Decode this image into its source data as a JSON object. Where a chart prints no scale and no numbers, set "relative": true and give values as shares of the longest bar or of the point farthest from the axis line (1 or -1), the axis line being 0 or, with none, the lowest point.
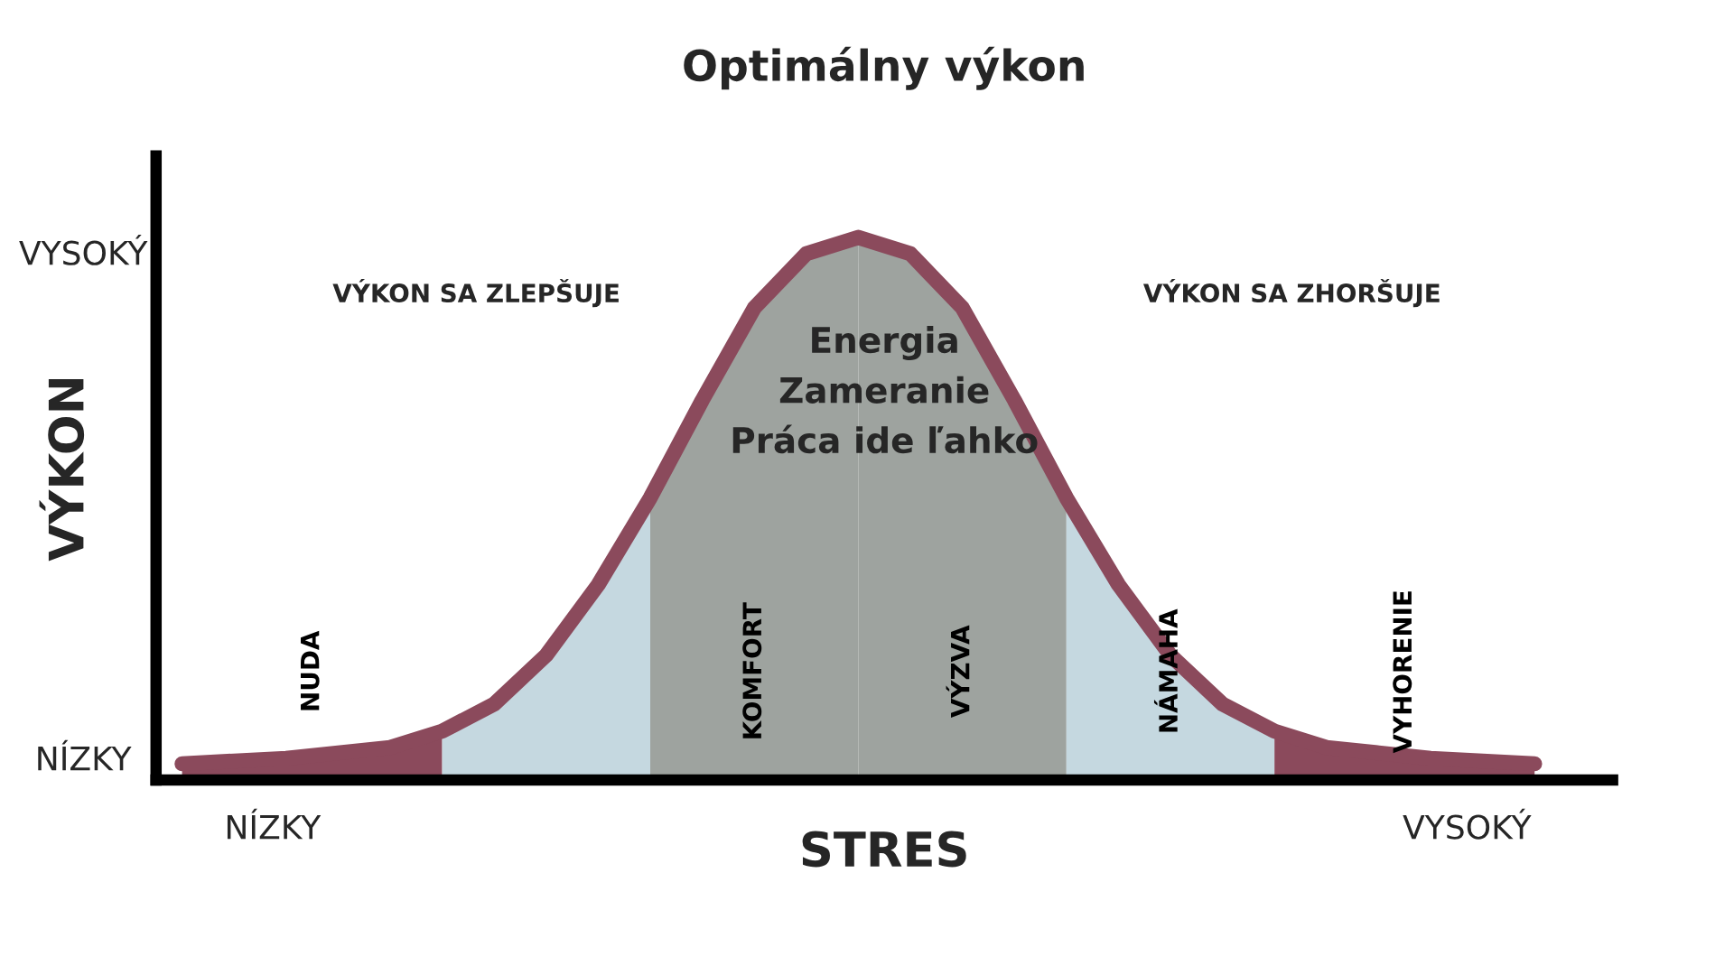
{
  "chart_data": {
    "type": "area",
    "title": "Optimálny výkon",
    "xlabel": "STRES",
    "ylabel": "VÝKON",
    "relative": true,
    "legend": false,
    "categories": [
      null,
      null,
      null,
      null,
      null,
      null,
      null,
      null,
      null,
      null,
      null,
      null,
      null,
      null,
      null,
      null,
      null,
      null,
      null,
      null,
      null,
      null,
      null,
      null,
      null,
      null,
      null
    ],
    "series": [
      {
        "name": "NUDA",
        "color": "#8b4a5c",
        "values": [
          0.03,
          0.035,
          0.04,
          0.05,
          0.06,
          0.09,
          null,
          null,
          null,
          null,
          null,
          null,
          null,
          null,
          null,
          null,
          null,
          null,
          null,
          null,
          null,
          null,
          null,
          null,
          null,
          null,
          null
        ]
      },
      {
        "color": "#c5d8e0",
        "values": [
          null,
          null,
          null,
          null,
          null,
          0.09,
          0.14,
          0.23,
          0.36,
          0.52,
          null,
          null,
          null,
          null,
          null,
          null,
          null,
          null,
          null,
          null,
          null,
          null,
          null,
          null,
          null,
          null,
          null
        ]
      },
      {
        "name": "KOMFORT",
        "color": "#9ea39f",
        "values": [
          null,
          null,
          null,
          null,
          null,
          null,
          null,
          null,
          null,
          0.52,
          0.7,
          0.87,
          0.97,
          1.0,
          null,
          null,
          null,
          null,
          null,
          null,
          null,
          null,
          null,
          null,
          null,
          null,
          null
        ]
      },
      {
        "name": "VÝZVA",
        "color": "#9ea39f",
        "values": [
          null,
          null,
          null,
          null,
          null,
          null,
          null,
          null,
          null,
          null,
          null,
          null,
          null,
          1.0,
          0.97,
          0.87,
          0.7,
          0.52,
          null,
          null,
          null,
          null,
          null,
          null,
          null,
          null,
          null
        ]
      },
      {
        "name": "NÁMAHA",
        "color": "#c5d8e0",
        "values": [
          null,
          null,
          null,
          null,
          null,
          null,
          null,
          null,
          null,
          null,
          null,
          null,
          null,
          null,
          null,
          null,
          null,
          0.52,
          0.36,
          0.23,
          0.14,
          0.09,
          null,
          null,
          null,
          null,
          null
        ]
      },
      {
        "name": "VYHORENIE",
        "color": "#8b4a5c",
        "values": [
          null,
          null,
          null,
          null,
          null,
          null,
          null,
          null,
          null,
          null,
          null,
          null,
          null,
          null,
          null,
          null,
          null,
          null,
          null,
          null,
          null,
          0.09,
          0.06,
          0.05,
          0.04,
          0.035,
          0.03
        ]
      },
      {
        "type": "line",
        "color": "#8b4a5c",
        "values": [
          0.03,
          0.035,
          0.04,
          0.05,
          0.06,
          0.09,
          0.14,
          0.23,
          0.36,
          0.52,
          0.7,
          0.87,
          0.97,
          1.0,
          0.97,
          0.87,
          0.7,
          0.52,
          0.36,
          0.23,
          0.14,
          0.09,
          0.06,
          0.05,
          0.04,
          0.035,
          0.03
        ]
      }
    ],
    "annotations": [
      "VÝKON SA ZLEPŠUJE",
      "Energia\nZameranie\nPráca ide ľahko",
      "VÝKON SA ZHORŠUJE",
      "NÍZKY",
      "VYSOKÝ",
      "NÍZKY",
      "VYSOKÝ"
    ]
  }
}
